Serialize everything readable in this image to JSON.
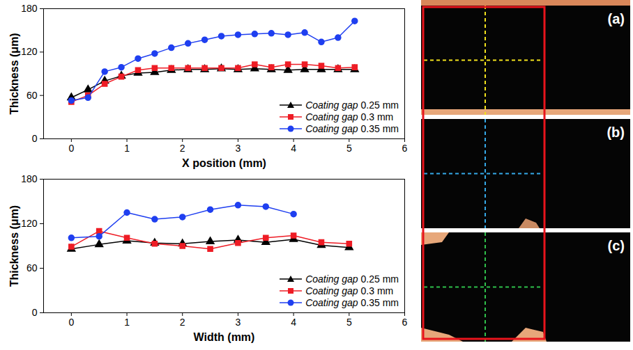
{
  "chart_data": [
    {
      "type": "line",
      "x_label": "X position (mm)",
      "y_label": "Thickness (μm)",
      "x": [
        0,
        0.3,
        0.6,
        0.9,
        1.2,
        1.5,
        1.8,
        2.1,
        2.4,
        2.7,
        3.0,
        3.3,
        3.6,
        3.9,
        4.2,
        4.5,
        4.8,
        5.1
      ],
      "series": [
        {
          "name": "Coating gap 0.25 mm",
          "color": "#000000",
          "marker": "triangle",
          "values": [
            57,
            68,
            80,
            87,
            91,
            92,
            95,
            96,
            96,
            97,
            96,
            97,
            96,
            95,
            96,
            96,
            96,
            96
          ]
        },
        {
          "name": "Coating gap 0.3 mm",
          "color": "#ee1c25",
          "marker": "square",
          "values": [
            51,
            60,
            76,
            86,
            95,
            98,
            98,
            98,
            98,
            98,
            98,
            103,
            99,
            103,
            103,
            101,
            98,
            99
          ]
        },
        {
          "name": "Coating gap 0.35 mm",
          "color": "#1f3ff0",
          "marker": "circle",
          "values": [
            53,
            57,
            93,
            99,
            111,
            118,
            126,
            132,
            137,
            142,
            144,
            145,
            146,
            144,
            147,
            134,
            140,
            163
          ]
        }
      ],
      "xlim": [
        -0.5,
        6
      ],
      "xticks": [
        0,
        1,
        2,
        3,
        4,
        5,
        6
      ],
      "ylim": [
        0,
        180
      ],
      "yticks": [
        0,
        60,
        120,
        180
      ],
      "legend": "lower right"
    },
    {
      "type": "line",
      "x_label": "Width (mm)",
      "y_label": "Thickness (μm)",
      "x": [
        0,
        0.5,
        1,
        1.5,
        2,
        2.5,
        3,
        3.5,
        4,
        4.5,
        5
      ],
      "series": [
        {
          "name": "Coating gap 0.25 mm",
          "color": "#000000",
          "marker": "triangle",
          "values": [
            86,
            92,
            97,
            94,
            93,
            96,
            98,
            95,
            99,
            91,
            88
          ]
        },
        {
          "name": "Coating gap 0.3 mm",
          "color": "#ee1c25",
          "marker": "square",
          "values": [
            89,
            110,
            101,
            93,
            90,
            86,
            94,
            101,
            104,
            95,
            93
          ]
        },
        {
          "name": "Coating gap 0.35 mm",
          "color": "#1f3ff0",
          "marker": "circle",
          "values": [
            101,
            103,
            135,
            126,
            129,
            139,
            145,
            143,
            133,
            null,
            null
          ]
        }
      ],
      "xlim": [
        -0.5,
        6
      ],
      "xticks": [
        0,
        1,
        2,
        3,
        4,
        5,
        6
      ],
      "ylim": [
        0,
        180
      ],
      "yticks": [
        0,
        60,
        120,
        180
      ],
      "legend": "lower right"
    }
  ],
  "image_panels": {
    "labels": [
      "(a)",
      "(b)",
      "(c)"
    ]
  }
}
